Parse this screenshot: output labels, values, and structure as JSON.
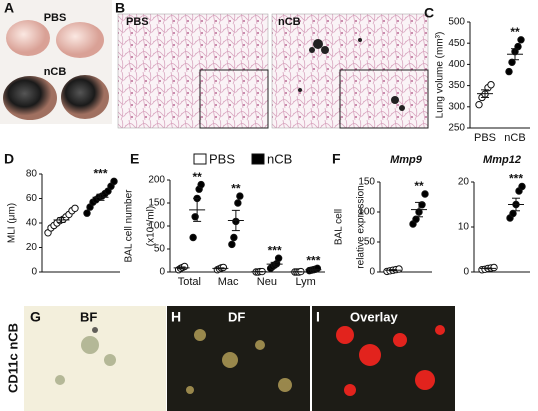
{
  "panels": [
    "A",
    "B",
    "C",
    "D",
    "E",
    "F",
    "G",
    "H",
    "I"
  ],
  "photo_labels": {
    "a_top": "PBS",
    "a_bottom": "nCB",
    "b_left": "PBS",
    "b_right": "nCB",
    "g": "BF",
    "h": "DF",
    "i": "Overlay",
    "row": "CD11c nCB"
  },
  "chart_data": [
    {
      "type": "dot",
      "ylabel": [
        "Lung volume (mm³)"
      ],
      "ylim": [
        250,
        500
      ],
      "yticks": [
        250,
        300,
        350,
        400,
        450,
        500
      ],
      "categories": [
        "PBS",
        "nCB"
      ],
      "stars": [
        null,
        "**"
      ],
      "series": [
        {
          "fill": [
            "white",
            "black"
          ],
          "values": [
            331,
            424
          ],
          "errors": [
            9,
            13
          ],
          "points": [
            [
              305,
              322,
              330,
              345,
              352
            ],
            [
              383,
              405,
              430,
              442,
              458
            ]
          ]
        }
      ]
    },
    {
      "type": "dot",
      "ylabel": [
        "MLI (μm)"
      ],
      "ylim": [
        0,
        80
      ],
      "yticks": [
        0,
        20,
        40,
        60,
        80
      ],
      "categories": [
        null,
        null
      ],
      "stars": [
        null,
        "***"
      ],
      "series": [
        {
          "fill": [
            "white",
            "black"
          ],
          "values": [
            42.5,
            61
          ],
          "errors": [
            2,
            2.5
          ],
          "points": [
            [
              32,
              36,
              38,
              40,
              42,
              43,
              45,
              47,
              50,
              52
            ],
            [
              48,
              53,
              57,
              59,
              61,
              62,
              64,
              66,
              70,
              74
            ]
          ]
        }
      ]
    },
    {
      "type": "dot",
      "ylabel": [
        "BAL cell number",
        "(x10⁴/ml)"
      ],
      "ylim": [
        0,
        200
      ],
      "yticks": [
        0,
        50,
        100,
        150,
        200
      ],
      "categories": [
        "Total",
        "Mac",
        "Neu",
        "Lym"
      ],
      "stars": [
        "**",
        "**",
        "***",
        "***"
      ],
      "series": [
        {
          "name": "PBS",
          "fill": "white",
          "values": [
            9,
            8,
            0.5,
            0.3
          ],
          "errors": [
            2,
            1,
            0.3,
            0.2
          ],
          "points": [
            [
              5,
              8,
              10,
              12
            ],
            [
              5,
              7,
              9,
              10
            ],
            [
              0,
              0,
              1,
              1
            ],
            [
              0,
              0,
              0,
              1
            ]
          ]
        },
        {
          "name": "nCB",
          "fill": "black",
          "values": [
            135,
            112,
            17,
            5
          ],
          "errors": [
            25,
            22,
            4,
            1
          ],
          "points": [
            [
              75,
              120,
              160,
              180,
              190
            ],
            [
              60,
              75,
              110,
              150,
              165
            ],
            [
              8,
              12,
              15,
              18,
              30
            ],
            [
              3,
              4,
              5,
              6,
              8
            ]
          ]
        }
      ]
    },
    {
      "type": "dot",
      "title": "Mmp9",
      "ylabel": [
        "BAL cell",
        "relative expression"
      ],
      "ylim": [
        0,
        150
      ],
      "yticks": [
        0,
        50,
        100,
        150
      ],
      "categories": [
        null,
        null
      ],
      "stars": [
        null,
        "**"
      ],
      "series": [
        {
          "fill": [
            "white",
            "black"
          ],
          "values": [
            3,
            104
          ],
          "errors": [
            1,
            12
          ],
          "points": [
            [
              1,
              2,
              3,
              4,
              5
            ],
            [
              80,
              88,
              100,
              112,
              130
            ]
          ]
        }
      ]
    },
    {
      "type": "dot",
      "title": "Mmp12",
      "ylim": [
        0,
        20
      ],
      "yticks": [
        0,
        10,
        20
      ],
      "categories": [
        null,
        null
      ],
      "stars": [
        null,
        "***"
      ],
      "series": [
        {
          "fill": [
            "white",
            "black"
          ],
          "values": [
            0.8,
            15
          ],
          "errors": [
            0.1,
            1.4
          ],
          "points": [
            [
              0.5,
              0.6,
              0.8,
              0.9,
              1
            ],
            [
              12,
              13,
              15,
              18,
              19
            ]
          ]
        }
      ]
    }
  ]
}
